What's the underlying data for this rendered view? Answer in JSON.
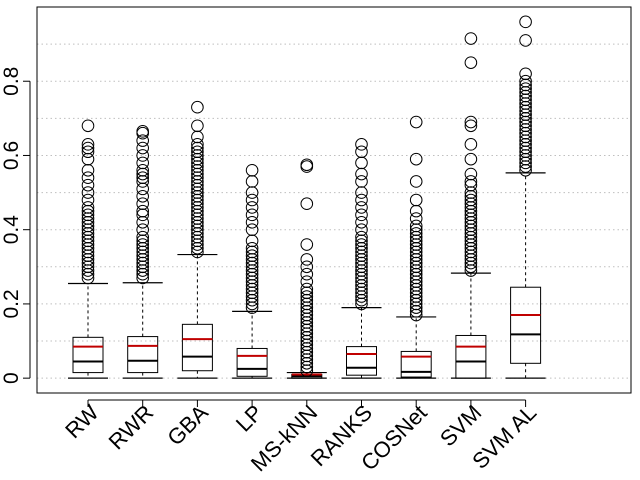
{
  "chart_data": {
    "type": "boxplot",
    "title": "",
    "xlabel": "",
    "ylabel": "",
    "ylim": [
      -0.04,
      1.0
    ],
    "grid": true,
    "yticks": [
      "0",
      "0.2",
      "0.4",
      "0.6",
      "0.8"
    ],
    "ytick_values": [
      0,
      0.2,
      0.4,
      0.6,
      0.8
    ],
    "colors": {
      "median": "#000000",
      "mean": "#c00000",
      "box": "#000000",
      "grid": "#bfbfbf"
    },
    "categories": [
      "RW",
      "RWR",
      "GBA",
      "LP",
      "MS-kNN",
      "RANKS",
      "COSNet",
      "SVM",
      "SVM AL"
    ],
    "series": [
      {
        "name": "RW",
        "min": 0.0,
        "q1": 0.015,
        "median": 0.045,
        "mean": 0.085,
        "q3": 0.11,
        "whisker_high": 0.255,
        "outliers": [
          0.27,
          0.28,
          0.29,
          0.3,
          0.31,
          0.32,
          0.33,
          0.34,
          0.35,
          0.36,
          0.37,
          0.38,
          0.39,
          0.4,
          0.41,
          0.42,
          0.43,
          0.44,
          0.45,
          0.46,
          0.48,
          0.5,
          0.52,
          0.54,
          0.56,
          0.59,
          0.61,
          0.62,
          0.63,
          0.68
        ]
      },
      {
        "name": "RWR",
        "min": 0.0,
        "q1": 0.015,
        "median": 0.047,
        "mean": 0.087,
        "q3": 0.112,
        "whisker_high": 0.257,
        "outliers": [
          0.27,
          0.28,
          0.29,
          0.3,
          0.31,
          0.32,
          0.33,
          0.34,
          0.35,
          0.36,
          0.37,
          0.38,
          0.4,
          0.42,
          0.44,
          0.45,
          0.47,
          0.49,
          0.51,
          0.53,
          0.54,
          0.55,
          0.56,
          0.58,
          0.6,
          0.62,
          0.64,
          0.66,
          0.665
        ]
      },
      {
        "name": "GBA",
        "min": 0.0,
        "q1": 0.02,
        "median": 0.058,
        "mean": 0.105,
        "q3": 0.145,
        "whisker_high": 0.333,
        "outliers": [
          0.34,
          0.35,
          0.36,
          0.37,
          0.38,
          0.39,
          0.4,
          0.41,
          0.42,
          0.43,
          0.44,
          0.45,
          0.46,
          0.47,
          0.48,
          0.49,
          0.5,
          0.51,
          0.52,
          0.53,
          0.54,
          0.55,
          0.56,
          0.57,
          0.58,
          0.59,
          0.6,
          0.61,
          0.62,
          0.63,
          0.65,
          0.68,
          0.73
        ]
      },
      {
        "name": "LP",
        "min": 0.0,
        "q1": 0.005,
        "median": 0.025,
        "mean": 0.06,
        "q3": 0.08,
        "whisker_high": 0.18,
        "outliers": [
          0.19,
          0.2,
          0.21,
          0.22,
          0.23,
          0.24,
          0.25,
          0.26,
          0.27,
          0.28,
          0.29,
          0.3,
          0.31,
          0.32,
          0.33,
          0.34,
          0.35,
          0.37,
          0.4,
          0.42,
          0.44,
          0.46,
          0.48,
          0.5,
          0.53,
          0.56
        ]
      },
      {
        "name": "MS-kNN",
        "min": 0.0,
        "q1": 0.0,
        "median": 0.005,
        "mean": 0.01,
        "q3": 0.01,
        "whisker_high": 0.015,
        "outliers": [
          0.02,
          0.03,
          0.04,
          0.05,
          0.06,
          0.07,
          0.08,
          0.09,
          0.1,
          0.11,
          0.12,
          0.13,
          0.14,
          0.15,
          0.16,
          0.17,
          0.18,
          0.19,
          0.2,
          0.21,
          0.22,
          0.23,
          0.24,
          0.26,
          0.28,
          0.3,
          0.32,
          0.36,
          0.47,
          0.57,
          0.575
        ]
      },
      {
        "name": "RANKS",
        "min": 0.0,
        "q1": 0.008,
        "median": 0.028,
        "mean": 0.065,
        "q3": 0.085,
        "whisker_high": 0.19,
        "outliers": [
          0.2,
          0.21,
          0.22,
          0.23,
          0.24,
          0.25,
          0.26,
          0.27,
          0.28,
          0.29,
          0.3,
          0.31,
          0.32,
          0.33,
          0.34,
          0.35,
          0.36,
          0.37,
          0.38,
          0.4,
          0.42,
          0.44,
          0.46,
          0.48,
          0.5,
          0.53,
          0.55,
          0.58,
          0.61,
          0.63
        ]
      },
      {
        "name": "COSNet",
        "min": 0.0,
        "q1": 0.003,
        "median": 0.017,
        "mean": 0.058,
        "q3": 0.072,
        "whisker_high": 0.165,
        "outliers": [
          0.17,
          0.18,
          0.19,
          0.2,
          0.21,
          0.22,
          0.23,
          0.24,
          0.25,
          0.26,
          0.27,
          0.28,
          0.29,
          0.3,
          0.31,
          0.32,
          0.33,
          0.34,
          0.35,
          0.36,
          0.37,
          0.38,
          0.39,
          0.4,
          0.41,
          0.43,
          0.45,
          0.48,
          0.53,
          0.59,
          0.69
        ]
      },
      {
        "name": "SVM",
        "min": 0.0,
        "q1": 0.0,
        "median": 0.045,
        "mean": 0.085,
        "q3": 0.115,
        "whisker_high": 0.283,
        "outliers": [
          0.29,
          0.3,
          0.31,
          0.32,
          0.33,
          0.34,
          0.35,
          0.36,
          0.37,
          0.38,
          0.39,
          0.4,
          0.41,
          0.42,
          0.43,
          0.44,
          0.45,
          0.46,
          0.47,
          0.48,
          0.49,
          0.5,
          0.52,
          0.53,
          0.55,
          0.59,
          0.63,
          0.68,
          0.69,
          0.85,
          0.915
        ]
      },
      {
        "name": "SVM AL",
        "min": 0.0,
        "q1": 0.04,
        "median": 0.118,
        "mean": 0.17,
        "q3": 0.245,
        "whisker_high": 0.553,
        "outliers": [
          0.56,
          0.57,
          0.58,
          0.59,
          0.6,
          0.61,
          0.62,
          0.63,
          0.64,
          0.65,
          0.66,
          0.67,
          0.68,
          0.69,
          0.7,
          0.71,
          0.72,
          0.73,
          0.74,
          0.75,
          0.76,
          0.77,
          0.78,
          0.79,
          0.8,
          0.82,
          0.91,
          0.96
        ]
      }
    ]
  }
}
